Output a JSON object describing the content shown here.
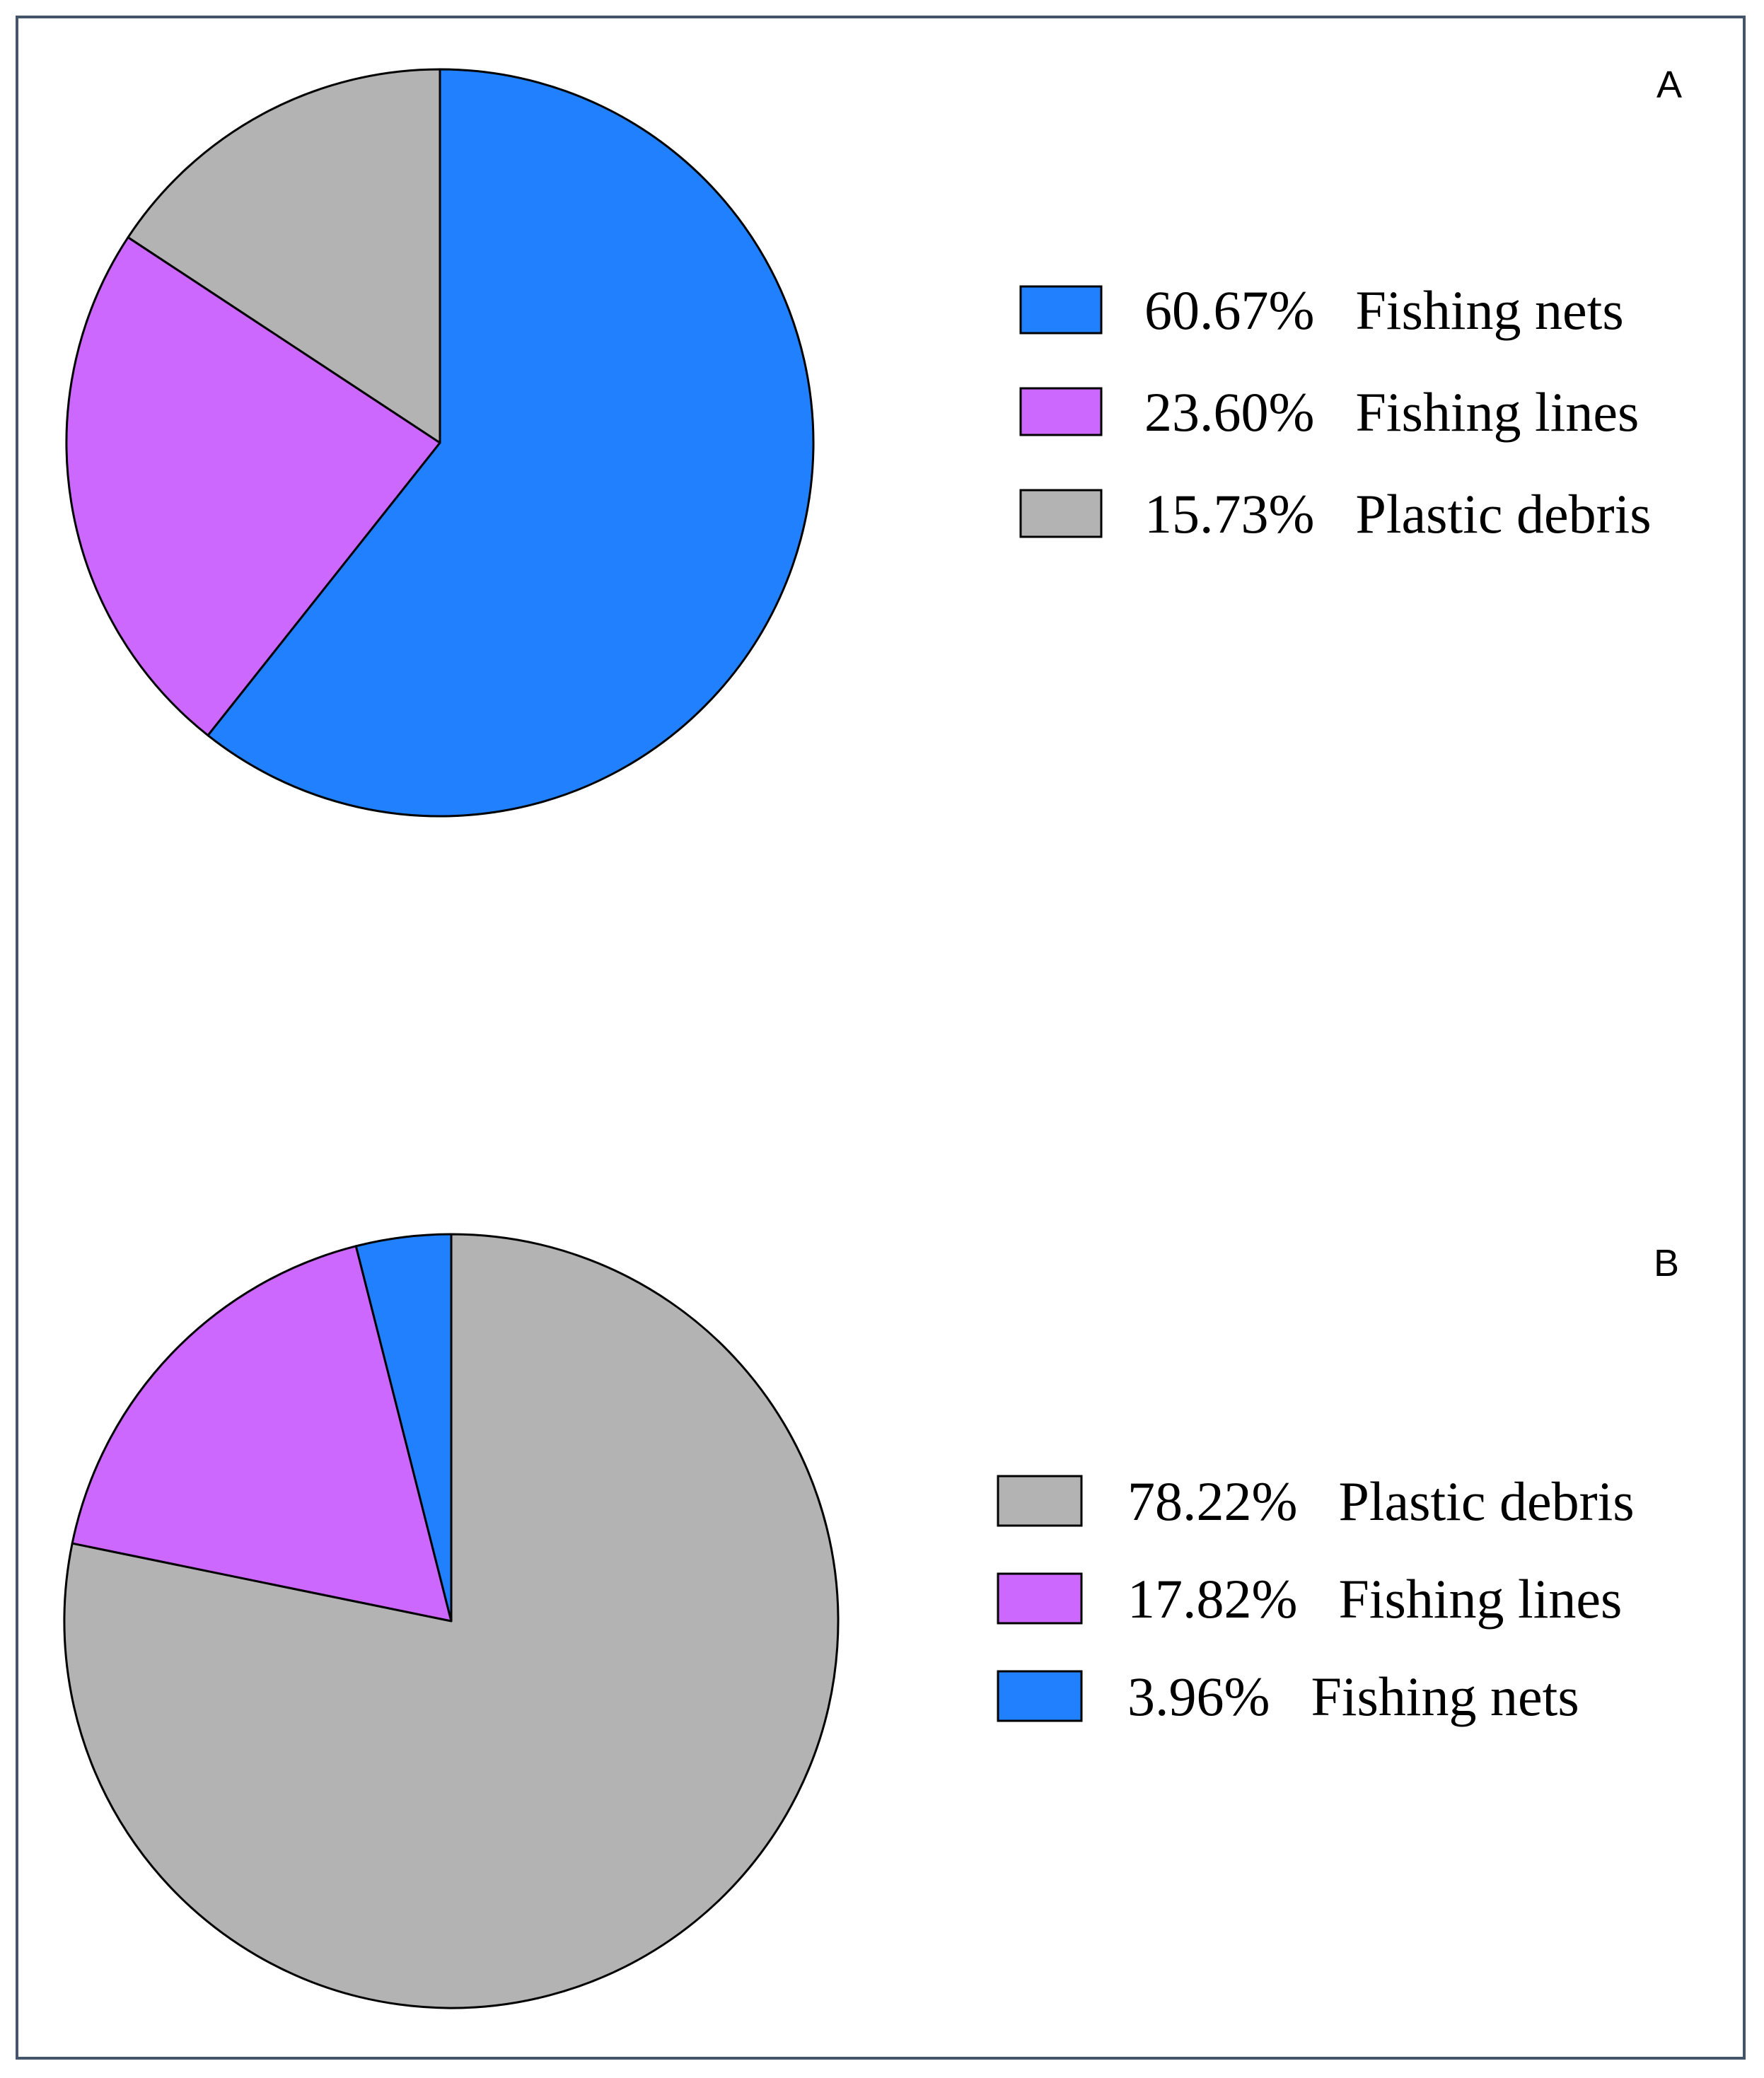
{
  "chart_data": [
    {
      "type": "pie",
      "panel_label": "A",
      "slices": [
        {
          "label": "Fishing nets",
          "value": 60.67,
          "display": "60.67%",
          "color": "#2180fd"
        },
        {
          "label": "Fishing lines",
          "value": 23.6,
          "display": "23.60%",
          "color": "#cc68fd"
        },
        {
          "label": "Plastic debris",
          "value": 15.73,
          "display": "15.73%",
          "color": "#b3b3b3"
        }
      ],
      "start_angle": "12 o'clock",
      "direction": "clockwise",
      "legend_position": "right"
    },
    {
      "type": "pie",
      "panel_label": "B",
      "slices": [
        {
          "label": "Plastic debris",
          "value": 78.22,
          "display": "78.22%",
          "color": "#b3b3b3"
        },
        {
          "label": "Fishing lines",
          "value": 17.82,
          "display": "17.82%",
          "color": "#cc68fd"
        },
        {
          "label": "Fishing nets",
          "value": 3.96,
          "display": "3.96%",
          "color": "#2180fd"
        }
      ],
      "start_angle": "12 o'clock",
      "direction": "clockwise",
      "legend_position": "right"
    }
  ]
}
